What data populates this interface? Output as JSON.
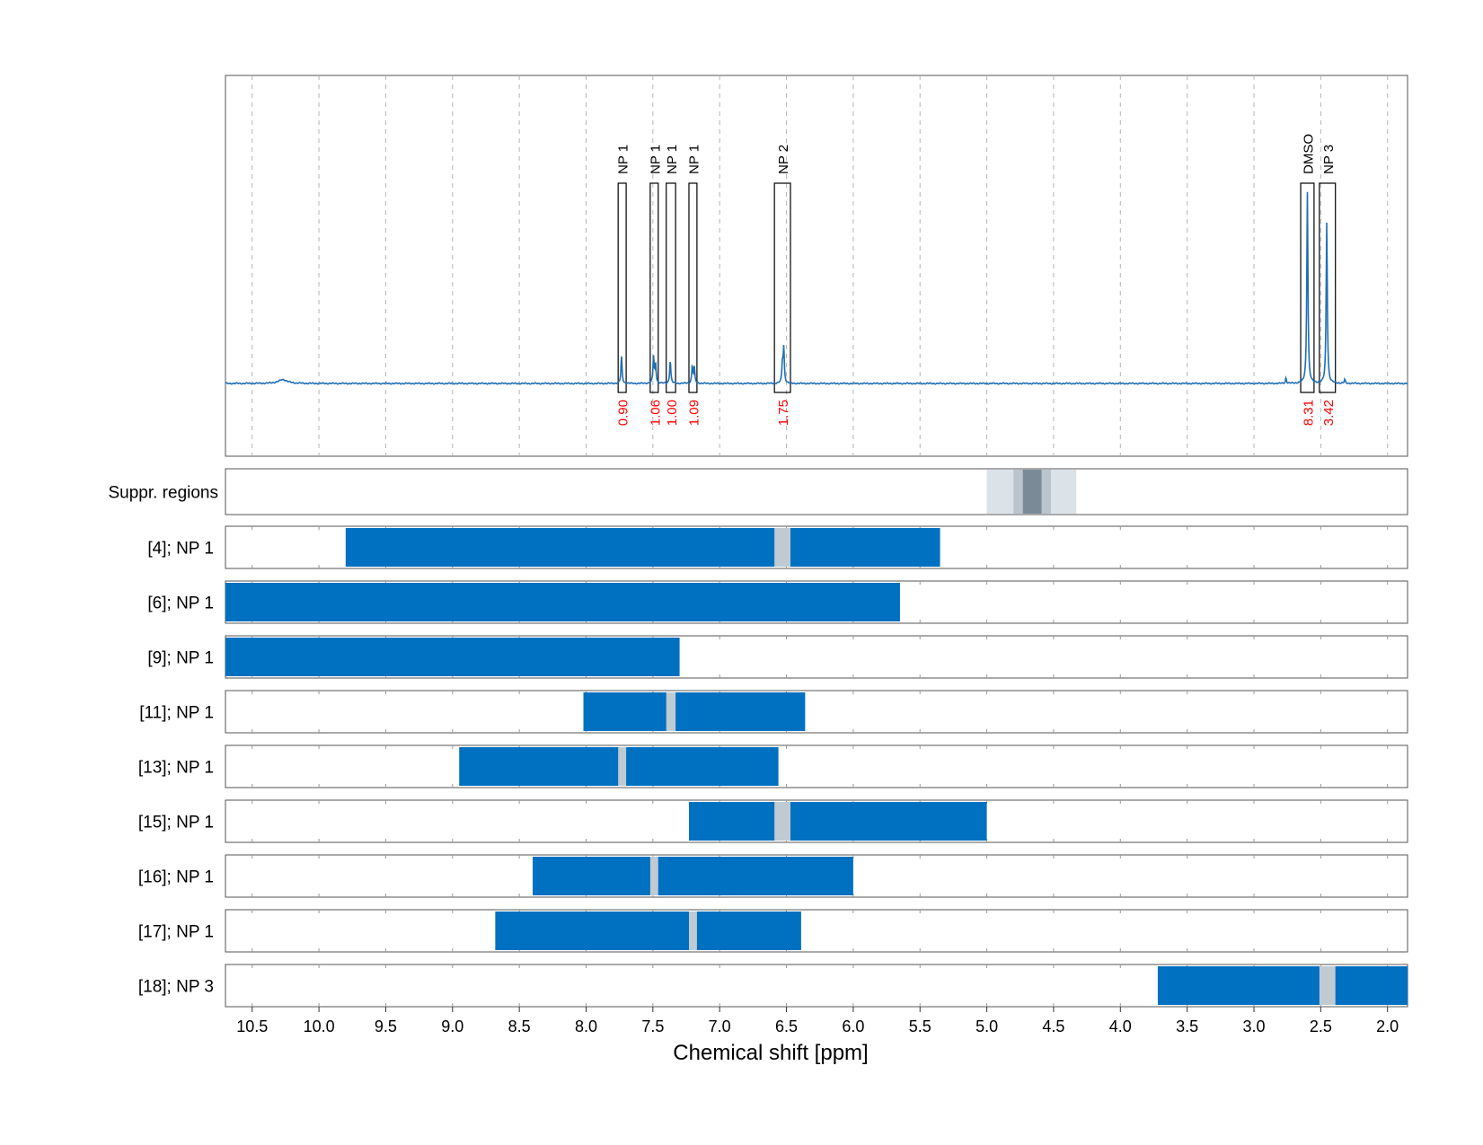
{
  "chart_data": {
    "type": "nmr-spectrum",
    "xlabel": "Chemical shift [ppm]",
    "xlim": [
      10.7,
      1.85
    ],
    "x_ticks": [
      10.5,
      10.0,
      9.5,
      9.0,
      8.5,
      8.0,
      7.5,
      7.0,
      6.5,
      6.0,
      5.5,
      5.0,
      4.5,
      4.0,
      3.5,
      3.0,
      2.5,
      2.0
    ],
    "x_tick_labels": [
      "10.5",
      "10.0",
      "9.5",
      "9.0",
      "8.5",
      "8.0",
      "7.5",
      "7.0",
      "6.5",
      "6.0",
      "5.5",
      "5.0",
      "4.5",
      "4.0",
      "3.5",
      "3.0",
      "2.5",
      "2.0"
    ],
    "grid": true,
    "colors": {
      "spectrum": "#1f6fb4",
      "bar": "#0070c0",
      "gap": "#c0cad2",
      "integral": "#ff0000",
      "box": "#000000",
      "suppr_light": "#dbe2e8",
      "suppr_mid": "#b9c4cd",
      "suppr_dark": "#7a8a96"
    },
    "spectrum": {
      "baseline": 0,
      "peaks": [
        {
          "x": 10.27,
          "h": 0.02,
          "w": 0.04
        },
        {
          "x": 7.735,
          "h": 0.14,
          "w": 0.005
        },
        {
          "x": 7.495,
          "h": 0.14,
          "w": 0.005
        },
        {
          "x": 7.48,
          "h": 0.1,
          "w": 0.005
        },
        {
          "x": 7.37,
          "h": 0.12,
          "w": 0.005
        },
        {
          "x": 7.205,
          "h": 0.09,
          "w": 0.005
        },
        {
          "x": 7.19,
          "h": 0.08,
          "w": 0.005
        },
        {
          "x": 6.52,
          "h": 0.18,
          "w": 0.005
        },
        {
          "x": 6.53,
          "h": 0.1,
          "w": 0.005
        },
        {
          "x": 2.76,
          "h": 0.03,
          "w": 0.004
        },
        {
          "x": 2.6,
          "h": 1.0,
          "w": 0.005
        },
        {
          "x": 2.455,
          "h": 0.84,
          "w": 0.005
        },
        {
          "x": 2.32,
          "h": 0.02,
          "w": 0.004
        }
      ]
    },
    "annotations": [
      {
        "label": "NP 1",
        "integral": "0.90",
        "x_from": 7.76,
        "x_to": 7.7
      },
      {
        "label": "NP 1",
        "integral": "1.06",
        "x_from": 7.52,
        "x_to": 7.46
      },
      {
        "label": "NP 1",
        "integral": "1.00",
        "x_from": 7.4,
        "x_to": 7.33
      },
      {
        "label": "NP 1",
        "integral": "1.09",
        "x_from": 7.23,
        "x_to": 7.17
      },
      {
        "label": "NP 2",
        "integral": "1.75",
        "x_from": 6.59,
        "x_to": 6.47
      },
      {
        "label": "DMSO",
        "integral": "8.31",
        "x_from": 2.65,
        "x_to": 2.55
      },
      {
        "label": "NP 3",
        "integral": "3.42",
        "x_from": 2.51,
        "x_to": 2.39
      }
    ],
    "suppression": {
      "label": "Suppr. regions",
      "bands": [
        {
          "from": 5.0,
          "to": 4.33,
          "level": "light"
        },
        {
          "from": 4.8,
          "to": 4.52,
          "level": "mid"
        },
        {
          "from": 4.73,
          "to": 4.59,
          "level": "dark"
        }
      ]
    },
    "rows": [
      {
        "label": "[4]; NP 1",
        "from": 9.8,
        "to": 5.35,
        "gap": [
          6.59,
          6.47
        ]
      },
      {
        "label": "[6]; NP 1",
        "from": 10.7,
        "to": 5.65,
        "gap": null
      },
      {
        "label": "[9]; NP 1",
        "from": 10.7,
        "to": 7.3,
        "gap": null
      },
      {
        "label": "[11]; NP 1",
        "from": 8.02,
        "to": 6.36,
        "gap": [
          7.4,
          7.33
        ]
      },
      {
        "label": "[13]; NP 1",
        "from": 8.95,
        "to": 6.56,
        "gap": [
          7.76,
          7.7
        ]
      },
      {
        "label": "[15]; NP 1",
        "from": 7.23,
        "to": 5.0,
        "gap": [
          6.59,
          6.47
        ]
      },
      {
        "label": "[16]; NP 1",
        "from": 8.4,
        "to": 6.0,
        "gap": [
          7.52,
          7.46
        ]
      },
      {
        "label": "[17]; NP 1",
        "from": 8.68,
        "to": 6.39,
        "gap": [
          7.23,
          7.17
        ]
      },
      {
        "label": "[18]; NP 3",
        "from": 3.72,
        "to": 1.85,
        "gap": [
          2.51,
          2.39
        ]
      }
    ]
  }
}
